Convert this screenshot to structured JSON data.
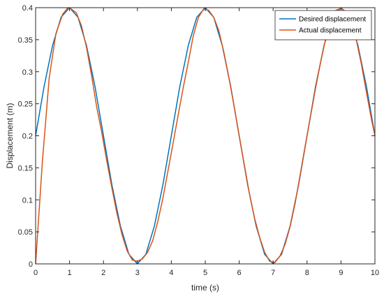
{
  "chart_data": {
    "type": "line",
    "title": "",
    "xlabel": "time (s)",
    "ylabel": "Displacement (m)",
    "xlim": [
      0,
      10
    ],
    "ylim": [
      0,
      0.4
    ],
    "xticks": [
      "0",
      "1",
      "2",
      "3",
      "4",
      "5",
      "6",
      "7",
      "8",
      "9",
      "10"
    ],
    "yticks": [
      "0",
      "0.05",
      "0.1",
      "0.15",
      "0.2",
      "0.25",
      "0.3",
      "0.35",
      "0.4"
    ],
    "grid": false,
    "legend_position": "top-right",
    "series": [
      {
        "name": "Desired displacement",
        "color": "#0072BD",
        "x": [
          0,
          0.25,
          0.5,
          0.75,
          1,
          1.25,
          1.5,
          1.75,
          2,
          2.25,
          2.5,
          2.75,
          3,
          3.25,
          3.5,
          3.75,
          4,
          4.25,
          4.5,
          4.75,
          5,
          5.25,
          5.5,
          5.75,
          6,
          6.25,
          6.5,
          6.75,
          7,
          7.25,
          7.5,
          7.75,
          8,
          8.25,
          8.5,
          8.75,
          9,
          9.25,
          9.5,
          9.75,
          10
        ],
        "y": [
          0.2,
          0.277,
          0.341,
          0.385,
          0.4,
          0.385,
          0.341,
          0.277,
          0.2,
          0.123,
          0.059,
          0.015,
          0,
          0.015,
          0.059,
          0.123,
          0.2,
          0.277,
          0.341,
          0.385,
          0.4,
          0.385,
          0.341,
          0.277,
          0.2,
          0.123,
          0.059,
          0.015,
          0,
          0.015,
          0.059,
          0.123,
          0.2,
          0.277,
          0.341,
          0.385,
          0.4,
          0.385,
          0.341,
          0.277,
          0.2
        ]
      },
      {
        "name": "Actual displacement",
        "color": "#D95319",
        "x": [
          0,
          0.2,
          0.4,
          0.6,
          0.8,
          0.95,
          1.05,
          1.2,
          1.35,
          1.5,
          1.65,
          1.8,
          1.95,
          2.1,
          2.25,
          2.4,
          2.55,
          2.7,
          2.85,
          3.0,
          3.15,
          3.3,
          3.45,
          3.6,
          3.75,
          3.9,
          4.05,
          4.2,
          4.35,
          4.5,
          4.65,
          4.8,
          4.95,
          5.1,
          5.25,
          5.4,
          5.55,
          5.7,
          5.85,
          6.0,
          6.15,
          6.3,
          6.45,
          6.6,
          6.75,
          6.9,
          7.05,
          7.2,
          7.35,
          7.5,
          7.65,
          7.8,
          7.95,
          8.1,
          8.25,
          8.4,
          8.55,
          8.7,
          8.85,
          9.0,
          9.15,
          9.3,
          9.45,
          9.6,
          9.75,
          9.9,
          10
        ],
        "y": [
          0,
          0.16,
          0.29,
          0.36,
          0.39,
          0.4,
          0.398,
          0.392,
          0.372,
          0.338,
          0.294,
          0.245,
          0.205,
          0.16,
          0.118,
          0.078,
          0.045,
          0.02,
          0.006,
          0.004,
          0.008,
          0.018,
          0.036,
          0.066,
          0.102,
          0.145,
          0.188,
          0.232,
          0.275,
          0.315,
          0.357,
          0.385,
          0.398,
          0.396,
          0.385,
          0.364,
          0.33,
          0.29,
          0.246,
          0.2,
          0.155,
          0.11,
          0.072,
          0.042,
          0.018,
          0.004,
          0.002,
          0.012,
          0.03,
          0.058,
          0.095,
          0.14,
          0.186,
          0.23,
          0.274,
          0.315,
          0.352,
          0.382,
          0.396,
          0.399,
          0.394,
          0.378,
          0.35,
          0.312,
          0.268,
          0.225,
          0.2
        ]
      }
    ]
  }
}
